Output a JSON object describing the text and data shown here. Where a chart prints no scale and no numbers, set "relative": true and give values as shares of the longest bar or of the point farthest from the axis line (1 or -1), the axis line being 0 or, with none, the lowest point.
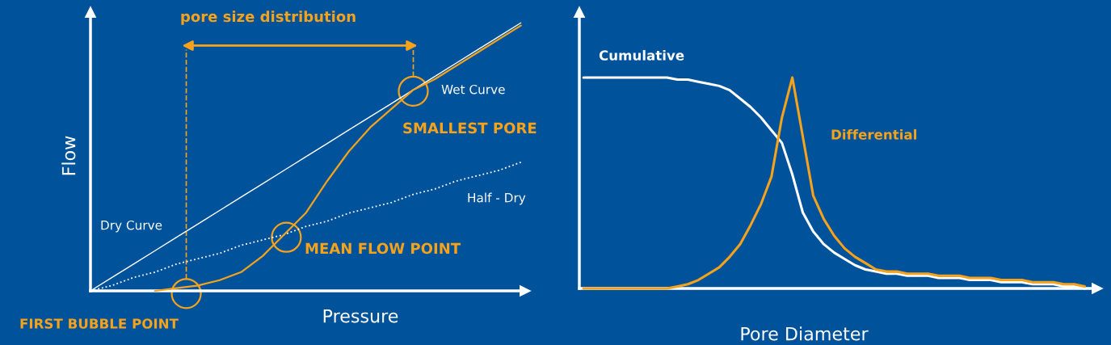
{
  "chart_data": [
    {
      "type": "line",
      "relative": true,
      "xlabel": "Pressure",
      "ylabel": "Flow",
      "categories": [
        null,
        null,
        null,
        null,
        null,
        null,
        null,
        null,
        null,
        null,
        null,
        null,
        null,
        null,
        null,
        null,
        null,
        null,
        null,
        null,
        null
      ],
      "series": [
        {
          "name": "Dry Curve",
          "color": "#ffffff",
          "line_style": "solid",
          "values": [
            0,
            0.05,
            0.1,
            0.15,
            0.2,
            0.25,
            0.3,
            0.35,
            0.4,
            0.45,
            0.5,
            0.55,
            0.6,
            0.65,
            0.7,
            0.75,
            0.8,
            0.85,
            0.9,
            0.95,
            1.0
          ]
        },
        {
          "name": "Half - Dry",
          "color": "#ffffff",
          "line_style": "dotted",
          "values": [
            0,
            0.02,
            0.05,
            0.07,
            0.1,
            0.12,
            0.14,
            0.17,
            0.19,
            0.21,
            0.24,
            0.26,
            0.29,
            0.31,
            0.33,
            0.36,
            0.38,
            0.41,
            0.43,
            0.45,
            0.48
          ]
        },
        {
          "name": "Wet Curve",
          "color": "#f7a21b",
          "line_style": "solid",
          "values": [
            null,
            null,
            null,
            0,
            0.01,
            0.02,
            0.04,
            0.07,
            0.13,
            0.21,
            0.29,
            0.41,
            0.52,
            0.61,
            0.68,
            0.75,
            0.79,
            0.84,
            0.89,
            0.94,
            0.99
          ]
        }
      ],
      "annotations": [
        "pore size distribution",
        "SMALLEST PORE",
        "MEAN FLOW POINT",
        "FIRST BUBBLE POINT"
      ]
    },
    {
      "type": "line",
      "relative": true,
      "xlabel": "Pore Diameter",
      "categories": [
        null,
        null,
        null,
        null,
        null,
        null,
        null,
        null,
        null,
        null,
        null,
        null,
        null,
        null,
        null,
        null,
        null,
        null,
        null,
        null,
        null,
        null,
        null,
        null,
        null,
        null,
        null,
        null,
        null,
        null,
        null,
        null,
        null,
        null,
        null,
        null,
        null,
        null,
        null,
        null,
        null,
        null,
        null,
        null,
        null,
        null,
        null,
        null,
        null
      ],
      "series": [
        {
          "name": "Cumulative",
          "color": "#ffffff",
          "line_style": "solid",
          "values": [
            1,
            1,
            1,
            1,
            1,
            1,
            1,
            1,
            1,
            0.99,
            0.99,
            0.98,
            0.97,
            0.96,
            0.94,
            0.9,
            0.86,
            0.81,
            0.75,
            0.69,
            0.54,
            0.36,
            0.27,
            0.21,
            0.17,
            0.14,
            0.11,
            0.09,
            0.08,
            0.07,
            0.07,
            0.06,
            0.06,
            0.06,
            0.05,
            0.05,
            0.05,
            0.04,
            0.04,
            0.04,
            0.03,
            0.03,
            0.03,
            0.02,
            0.02,
            0.02,
            0.01,
            0.01,
            0
          ]
        },
        {
          "name": "Differential",
          "color": "#f7a21b",
          "line_style": "solid",
          "values": [
            0,
            0,
            0,
            0,
            0,
            0,
            0,
            0,
            0,
            0.01,
            0.02,
            0.04,
            0.07,
            0.1,
            0.15,
            0.21,
            0.3,
            0.4,
            0.53,
            0.81,
            1.0,
            0.72,
            0.44,
            0.33,
            0.25,
            0.19,
            0.15,
            0.12,
            0.09,
            0.08,
            0.08,
            0.07,
            0.07,
            0.07,
            0.06,
            0.06,
            0.06,
            0.05,
            0.05,
            0.05,
            0.04,
            0.04,
            0.04,
            0.03,
            0.03,
            0.03,
            0.02,
            0.02,
            0.01
          ]
        }
      ]
    }
  ]
}
